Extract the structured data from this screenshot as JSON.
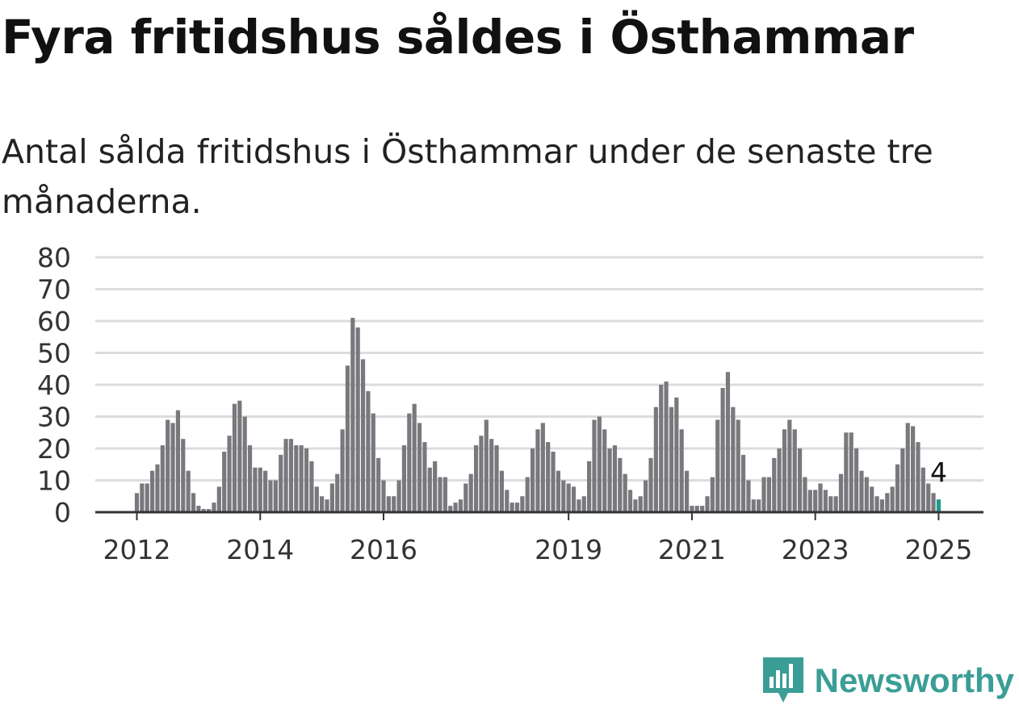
{
  "title": "Fyra fritidshus såldes i Östhammar",
  "subtitle": "Antal sålda fritidshus i Östhammar under de senaste tre månaderna.",
  "brand": {
    "name": "Newsworthy",
    "color": "#3a9e96",
    "icon": "newsworthy-bar-logo-icon"
  },
  "colors": {
    "bar": "#79787d",
    "highlight": "#1d9c8c",
    "grid": "#dcdcdc",
    "axis": "#333333"
  },
  "chart_data": {
    "type": "bar",
    "title": "",
    "xlabel": "",
    "ylabel": "",
    "ylim": [
      0,
      80
    ],
    "yticks": [
      0,
      10,
      20,
      30,
      40,
      50,
      60,
      70,
      80
    ],
    "grid": true,
    "x_tick_labels": [
      "2012",
      "2014",
      "2016",
      "2019",
      "2021",
      "2023",
      "2025"
    ],
    "x_tick_months": [
      "2012-01",
      "2014-01",
      "2016-01",
      "2019-01",
      "2021-01",
      "2023-01",
      "2025-01"
    ],
    "start_month": "2012-01",
    "annotation": {
      "month": "2025-01",
      "text": "4"
    },
    "series": [
      {
        "values": [
          6,
          9,
          9,
          13,
          15,
          21,
          29,
          28,
          32,
          23,
          13,
          6,
          2,
          1,
          1,
          3,
          8,
          19,
          24,
          34,
          35,
          30,
          21,
          14,
          14,
          13,
          10,
          10,
          18,
          23,
          23,
          21,
          21,
          20,
          16,
          8,
          5,
          4,
          9,
          12,
          26,
          46,
          61,
          58,
          48,
          38,
          31,
          17,
          10,
          5,
          5,
          10,
          21,
          31,
          34,
          28,
          22,
          14,
          16,
          11,
          11,
          2,
          3,
          4,
          9,
          12,
          21,
          24,
          29,
          23,
          21,
          13,
          7,
          3,
          3,
          5,
          11,
          20,
          26,
          28,
          22,
          19,
          13,
          10,
          9,
          8,
          4,
          5,
          16,
          29,
          30,
          26,
          20,
          21,
          17,
          12,
          7,
          4,
          5,
          10,
          17,
          33,
          40,
          41,
          33,
          36,
          26,
          13,
          2,
          2,
          2,
          5,
          11,
          29,
          39,
          44,
          33,
          29,
          18,
          10,
          4,
          4,
          11,
          11,
          17,
          20,
          26,
          29,
          26,
          20,
          11,
          7,
          7,
          9,
          7,
          5,
          5,
          12,
          25,
          25,
          20,
          13,
          11,
          8,
          5,
          4,
          6,
          8,
          15,
          20,
          28,
          27,
          22,
          14,
          9,
          6,
          4
        ]
      }
    ]
  }
}
